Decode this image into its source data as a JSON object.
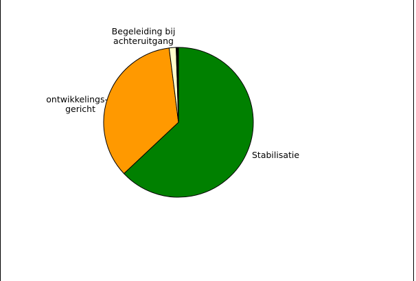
{
  "chart_data": {
    "type": "pie",
    "slices": [
      {
        "label": "Stabilisatie",
        "value": 63.0,
        "color": "#008000"
      },
      {
        "label": "ontwikkelings-gericht",
        "value": 35.0,
        "color": "#ff9900"
      },
      {
        "label": "Begeleiding bij achteruitgang",
        "value": 1.5,
        "color": "#ffffcc"
      },
      {
        "label": "",
        "value": 0.5,
        "color": "#000000"
      }
    ],
    "labels": {
      "stabilisatie": "Stabilisatie",
      "ontwikkeling_line1": "ontwikkelings-",
      "ontwikkeling_line2": "gericht",
      "begeleiding_line1": "Begeleiding bij",
      "begeleiding_line2": "achteruitgang"
    },
    "legend": "none",
    "grid": false
  }
}
